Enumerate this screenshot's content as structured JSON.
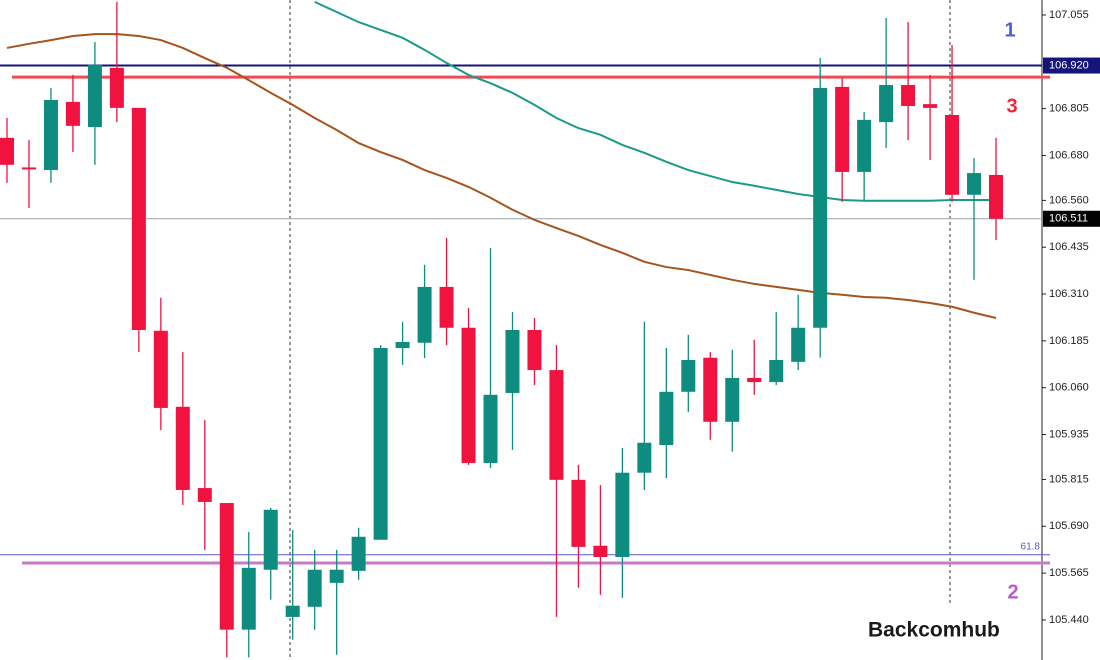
{
  "chart_data": {
    "type": "candlestick",
    "ylim": [
      105.333,
      107.095
    ],
    "yticks": [
      107.055,
      {
        "value": 106.805,
        "label": "106.805"
      },
      {
        "value": 106.68,
        "label": "106.680"
      },
      {
        "value": 106.56,
        "label": "106.560"
      },
      106.435,
      {
        "value": 106.31,
        "label": "106.310"
      },
      106.185,
      {
        "value": 106.06,
        "label": "106.060"
      },
      105.935,
      105.815,
      {
        "value": 105.69,
        "label": "105.690"
      },
      105.565,
      {
        "value": 105.44,
        "label": "105.440"
      }
    ],
    "up_color": "#0e8c80",
    "down_color": "#f0123f",
    "open": [
      106.727,
      106.648,
      106.641,
      106.823,
      106.756,
      106.914,
      106.807,
      106.212,
      106.009,
      105.792,
      105.752,
      105.414,
      105.574,
      105.448,
      105.475,
      105.539,
      105.571,
      105.654,
      106.166,
      106.18,
      106.329,
      106.22,
      105.859,
      106.046,
      106.214,
      106.107,
      105.814,
      105.638,
      105.608,
      105.833,
      105.907,
      106.049,
      106.14,
      105.969,
      106.086,
      106.075,
      106.129,
      106.22,
      106.863,
      106.636,
      106.769,
      106.868,
      106.817,
      106.788,
      106.575,
      106.628
    ],
    "high": [
      106.78,
      106.721,
      106.86,
      106.895,
      106.983,
      107.09,
      106.807,
      106.3,
      106.155,
      105.974,
      105.752,
      105.675,
      105.739,
      105.68,
      105.627,
      105.627,
      105.686,
      106.174,
      106.236,
      106.388,
      106.46,
      106.273,
      106.433,
      106.262,
      106.246,
      106.174,
      105.854,
      105.8,
      105.899,
      106.236,
      106.166,
      106.201,
      106.155,
      106.161,
      106.188,
      106.262,
      106.308,
      106.94,
      106.887,
      106.796,
      107.047,
      107.036,
      106.895,
      106.975,
      106.673,
      106.727
    ],
    "low": [
      106.607,
      106.54,
      106.607,
      106.689,
      106.655,
      106.769,
      106.155,
      105.947,
      105.747,
      105.627,
      105.34,
      105.34,
      105.494,
      105.387,
      105.414,
      105.347,
      105.547,
      105.654,
      106.121,
      106.139,
      106.174,
      105.854,
      105.846,
      105.894,
      106.067,
      105.448,
      105.526,
      105.507,
      105.499,
      105.787,
      105.819,
      105.995,
      105.921,
      105.889,
      106.041,
      106.067,
      106.107,
      106.14,
      106.556,
      106.561,
      106.7,
      106.721,
      106.668,
      106.556,
      106.348,
      106.454
    ],
    "close": [
      106.655,
      106.645,
      106.828,
      106.759,
      106.922,
      106.807,
      106.214,
      106.006,
      105.787,
      105.755,
      105.414,
      105.579,
      105.734,
      105.478,
      105.574,
      105.574,
      105.662,
      106.166,
      106.182,
      106.329,
      106.22,
      105.859,
      106.041,
      106.214,
      106.107,
      105.814,
      105.635,
      105.608,
      105.833,
      105.913,
      106.049,
      106.134,
      105.969,
      106.086,
      106.075,
      106.134,
      106.22,
      106.86,
      106.636,
      106.775,
      106.868,
      106.812,
      106.807,
      106.575,
      106.633,
      106.511
    ],
    "moving_averages": [
      {
        "color": "#1a9a8c",
        "values": [
          null,
          null,
          null,
          null,
          null,
          null,
          null,
          null,
          null,
          null,
          null,
          null,
          null,
          null,
          107.09,
          107.063,
          107.036,
          107.015,
          106.994,
          106.962,
          106.927,
          106.895,
          106.873,
          106.847,
          106.815,
          106.78,
          106.753,
          106.735,
          106.708,
          106.687,
          106.663,
          106.641,
          106.625,
          106.609,
          106.599,
          106.588,
          106.577,
          106.569,
          106.561,
          106.559,
          106.559,
          106.559,
          106.559,
          106.561,
          106.561,
          106.561
        ]
      },
      {
        "color": "#a4541c",
        "values": [
          106.967,
          106.978,
          106.988,
          106.999,
          107.004,
          107.004,
          106.999,
          106.988,
          106.967,
          106.94,
          106.914,
          106.881,
          106.847,
          106.815,
          106.78,
          106.748,
          106.713,
          106.689,
          106.668,
          106.641,
          106.62,
          106.596,
          106.567,
          106.535,
          106.508,
          106.486,
          106.465,
          106.441,
          106.42,
          106.396,
          106.382,
          106.374,
          106.361,
          106.348,
          106.337,
          106.329,
          106.321,
          106.313,
          106.308,
          106.302,
          106.3,
          106.294,
          106.286,
          106.276,
          106.26,
          106.246
        ]
      }
    ],
    "hlines": [
      {
        "value": 106.92,
        "label": "106.920",
        "color": "#14147a",
        "label_style": "box"
      },
      {
        "value": 106.889,
        "color": "#f04a55"
      },
      {
        "value": 106.511,
        "label": "106.511",
        "color": "#9aa5a5",
        "label_style": "box-dark"
      },
      {
        "value": 105.614,
        "label": "61.8",
        "color": "#5a5ad0",
        "label_style": "text"
      },
      {
        "value": 105.592,
        "color": "#c77ac9"
      }
    ],
    "annotations": [
      {
        "text": "1",
        "color": "#4a5ee0"
      },
      {
        "text": "3",
        "color": "#f0283c"
      },
      {
        "text": "2",
        "color": "#b55ec8"
      }
    ],
    "watermark": "Backcomhub"
  }
}
